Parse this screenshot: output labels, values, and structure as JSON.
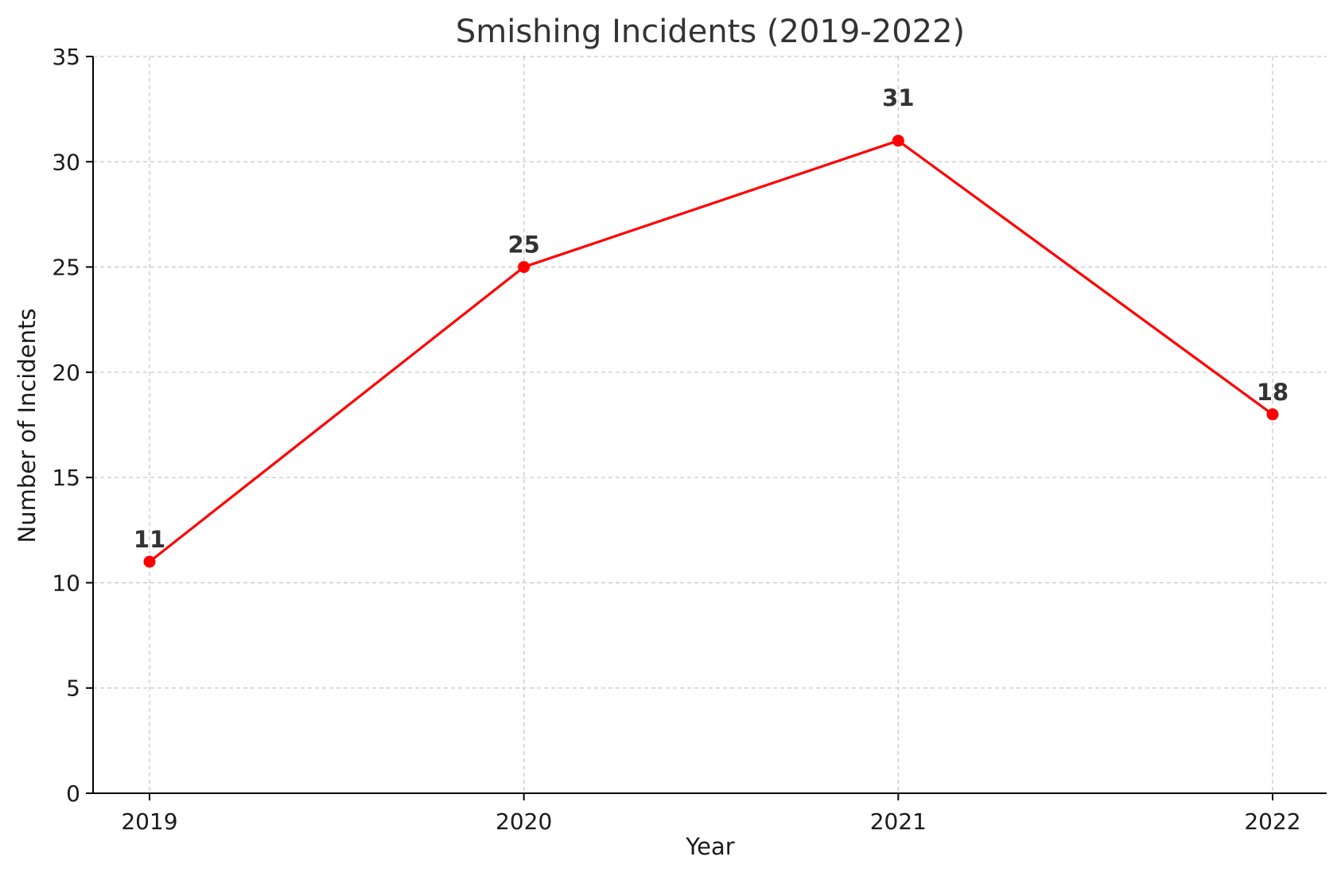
{
  "chart_data": {
    "type": "line",
    "title": "Smishing Incidents (2019-2022)",
    "xlabel": "Year",
    "ylabel": "Number of Incidents",
    "categories": [
      "2019",
      "2020",
      "2021",
      "2022"
    ],
    "series": [
      {
        "values": [
          11,
          25,
          31,
          18
        ],
        "color": "#ff0000",
        "marker": "circle"
      }
    ],
    "data_labels": [
      "11",
      "25",
      "31",
      "18"
    ],
    "ylim": [
      0,
      35
    ],
    "yticks": [
      0,
      5,
      10,
      15,
      20,
      25,
      30,
      35
    ],
    "ytick_labels": [
      "0",
      "5",
      "10",
      "15",
      "20",
      "25",
      "30",
      "35"
    ],
    "grid": true,
    "grid_style": "dashed",
    "legend": false
  }
}
